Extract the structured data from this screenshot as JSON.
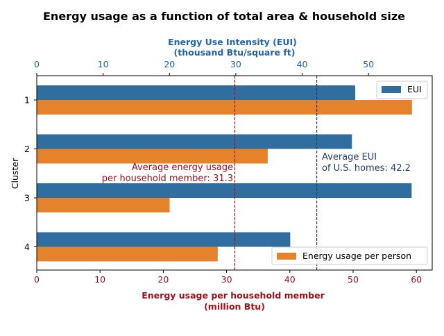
{
  "chart_data": {
    "type": "bar",
    "orientation": "horizontal",
    "title": "Energy usage as a function of total area & household size",
    "ylabel": "Cluster",
    "categories": [
      "1",
      "2",
      "3",
      "4"
    ],
    "bottom_axis": {
      "label_line1": "Energy usage per household member",
      "label_line2": "(million Btu)",
      "xlim": [
        0,
        62.5
      ],
      "ticks": [
        0,
        10,
        20,
        30,
        40,
        50,
        60
      ],
      "color": "#a50f15"
    },
    "top_axis": {
      "label_line1": "Energy Use Intensity (EUI)",
      "label_line2": "(thousand Btu/square ft)",
      "xlim": [
        0,
        59.6
      ],
      "ticks": [
        0,
        10,
        20,
        30,
        40,
        50
      ],
      "color": "#1f63b0"
    },
    "series": [
      {
        "name": "EUI",
        "axis": "top",
        "color": "#2f6e9e",
        "values": [
          48.0,
          47.5,
          56.5,
          38.2
        ]
      },
      {
        "name": "Energy usage per person",
        "axis": "bottom",
        "color": "#e5832d",
        "values": [
          59.3,
          36.5,
          21.0,
          28.6
        ]
      }
    ],
    "reference_lines": [
      {
        "axis": "bottom",
        "value": 31.3,
        "color": "#a50f15",
        "label_line1": "Average energy usage",
        "label_line2": "per household member: 31.3"
      },
      {
        "axis": "top",
        "value": 42.2,
        "color": "#1f3f6e",
        "label_line1": "Average EUI",
        "label_line2": "of U.S. homes: 42.2"
      }
    ],
    "legend": {
      "eui_placement": "top-right",
      "person_placement": "bottom-right"
    }
  }
}
